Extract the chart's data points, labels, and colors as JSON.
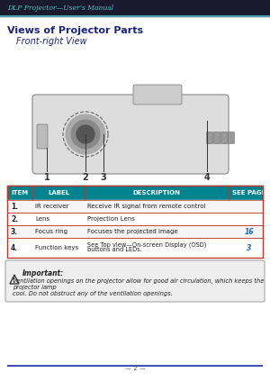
{
  "page_bg": "#ffffff",
  "header_bg": "#1a1a2e",
  "header_text": "DLP Projector—User’s Manual",
  "header_text_color": "#4fc3c3",
  "header_line_color": "#4fc3c3",
  "title_text": "Views of Projector Parts",
  "title_color": "#1a237e",
  "subtitle_text": "Front-right View",
  "subtitle_color": "#1a237e",
  "table_header_bg": "#00838f",
  "table_header_text_color": "#ffffff",
  "table_border_color": "#c0392b",
  "table_row_bg_alt": "#f5f5f5",
  "table_row_bg": "#ffffff",
  "table_headers": [
    "Item",
    "Label",
    "Description",
    "See Page"
  ],
  "table_rows": [
    [
      "1.",
      "IR receiver",
      "Receive IR signal from remote control",
      ""
    ],
    [
      "2.",
      "Lens",
      "Projection Lens",
      ""
    ],
    [
      "3.",
      "Focus ring",
      "Focuses the projected image",
      "16"
    ],
    [
      "4.",
      "Function keys",
      "See Top view—On-screen Display (OSD)\nbuttons and LEDs.",
      "3"
    ]
  ],
  "see_page_color": "#1565c0",
  "note_bg": "#eeeeee",
  "note_border_color": "#aaaaaa",
  "note_title": "Important:",
  "note_text": "Ventilation openings on the projector allow for good air circulation, which keeps the projector lamp\ncool. Do not obstruct any of the ventilation openings.",
  "footer_line_color": "#3f51b5",
  "footer_text": "— 2 —",
  "footer_text_color": "#555555",
  "number_labels": [
    "1",
    "2",
    "3",
    "4"
  ],
  "projector_img_placeholder": true
}
